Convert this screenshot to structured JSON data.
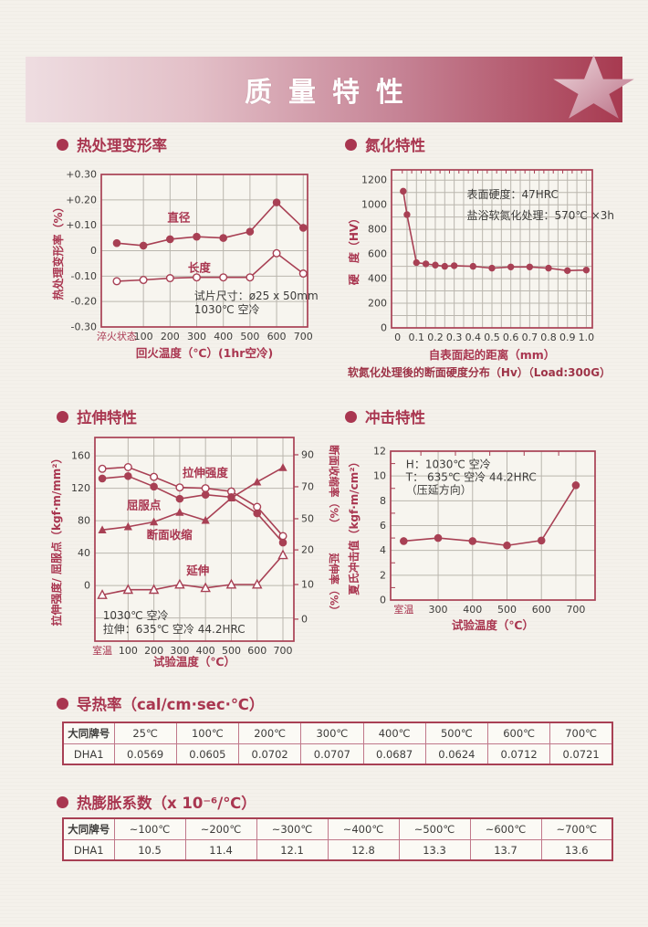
{
  "banner": {
    "title": "质量特性"
  },
  "colors": {
    "accent": "#a93650",
    "line": "#a84054",
    "grid": "#bab6ae",
    "dark_text": "#3d3c3a",
    "plot_bg": "#f7f5ef",
    "paper": "#f4f1eb",
    "banner_light": "#eedde1",
    "banner_dark": "#a73a50"
  },
  "chart_data": [
    {
      "id": "heat-deformation",
      "type": "line",
      "section_title": "热处理变形率",
      "xlabel": "回火温度（℃）(1hr空冷)",
      "ylabel": "热处理变形率（%）",
      "categories": [
        "淬火状态",
        "100",
        "200",
        "300",
        "400",
        "500",
        "600",
        "700"
      ],
      "first_category_accent": true,
      "axes": {
        "left": {
          "map": [
            [
              0.3,
              0
            ],
            [
              -0.3,
              1
            ]
          ],
          "ticks": [
            [
              0.3,
              "+0.30"
            ],
            [
              0.2,
              "+0.20"
            ],
            [
              0.1,
              "+0.10"
            ],
            [
              0,
              "0"
            ],
            [
              -0.1,
              "-0.10"
            ],
            [
              -0.2,
              "-0.20"
            ],
            [
              -0.3,
              "-0.30"
            ]
          ],
          "grid": [
            0.2,
            0.1,
            0,
            -0.1,
            -0.2
          ]
        }
      },
      "series": [
        {
          "name": "直径",
          "marker": "circle-filled",
          "axis": "left",
          "values": [
            0.03,
            0.02,
            0.045,
            0.055,
            0.05,
            0.075,
            0.19,
            0.09
          ]
        },
        {
          "name": "长度",
          "marker": "circle-open",
          "axis": "left",
          "values": [
            -0.12,
            -0.115,
            -0.108,
            -0.105,
            -0.105,
            -0.105,
            -0.01,
            -0.09
          ]
        }
      ],
      "labels": [
        {
          "text": "直径",
          "fx": 0.32,
          "fy": 0.285
        },
        {
          "text": "长度",
          "fx": 0.42,
          "fy": 0.615
        }
      ],
      "note": {
        "fx": 0.45,
        "fy": 0.795,
        "lines": [
          "试片尺寸：ø25 x 50mm",
          "1030℃ 空冷"
        ]
      }
    },
    {
      "id": "nitriding",
      "type": "line",
      "section_title": "氮化特性",
      "xlabel": "自表面起的距离（mm）",
      "ylabel": "硬　度（HV）",
      "caption": "软氮化处理後的断面硬度分布（Hv）（Load:300G）",
      "x_map": [
        [
          0,
          0.03
        ],
        [
          1.0,
          0.97
        ]
      ],
      "x_ticks": [
        [
          0,
          "0"
        ],
        [
          0.1,
          "0.1"
        ],
        [
          0.2,
          "0.2"
        ],
        [
          0.3,
          "0.3"
        ],
        [
          0.4,
          "0.4"
        ],
        [
          0.5,
          "0.5"
        ],
        [
          0.6,
          "0.6"
        ],
        [
          0.7,
          "0.7"
        ],
        [
          0.8,
          "0.8"
        ],
        [
          0.9,
          "0.9"
        ],
        [
          1.0,
          "1.0"
        ]
      ],
      "x_grid": [
        0.05,
        0.1,
        0.15,
        0.2,
        0.25,
        0.3,
        0.35,
        0.4,
        0.45,
        0.5,
        0.55,
        0.6,
        0.65,
        0.7,
        0.75,
        0.8,
        0.85,
        0.9,
        0.95,
        1.0
      ],
      "x_minor": [
        0.025,
        0.075,
        0.125,
        0.175,
        0.225,
        0.275,
        0.325,
        0.375,
        0.425,
        0.475,
        0.525,
        0.575,
        0.625,
        0.675,
        0.725,
        0.775,
        0.825,
        0.875,
        0.925,
        0.975
      ],
      "axes": {
        "left": {
          "map": [
            [
              1200,
              0.065
            ],
            [
              0,
              1.0
            ]
          ],
          "ticks": [
            [
              1200,
              "1200"
            ],
            [
              1000,
              "1000"
            ],
            [
              800,
              "800"
            ],
            [
              600,
              "600"
            ],
            [
              400,
              "400"
            ],
            [
              200,
              "200"
            ],
            [
              0,
              "0"
            ]
          ],
          "grid": [
            100,
            200,
            300,
            400,
            500,
            600,
            700,
            800,
            900,
            1000,
            1100,
            1200
          ]
        }
      },
      "series": [
        {
          "name": "硬度",
          "marker": "circle-filled",
          "axis": "left",
          "size": 3.2,
          "points": [
            [
              0.03,
              1110
            ],
            [
              0.05,
              920
            ],
            [
              0.1,
              530
            ],
            [
              0.15,
              520
            ],
            [
              0.2,
              510
            ],
            [
              0.25,
              500
            ],
            [
              0.3,
              505
            ],
            [
              0.4,
              500
            ],
            [
              0.5,
              485
            ],
            [
              0.6,
              495
            ],
            [
              0.7,
              495
            ],
            [
              0.8,
              485
            ],
            [
              0.9,
              465
            ],
            [
              1.0,
              470
            ]
          ]
        }
      ],
      "annotations": [
        {
          "fx": 0.375,
          "fy": 0.155,
          "text": "表面硬度：47HRC"
        },
        {
          "fx": 0.375,
          "fy": 0.29,
          "text": "盐浴软氮化处理：570℃ ×3h"
        }
      ]
    },
    {
      "id": "tensile",
      "type": "line",
      "section_title": "拉伸特性",
      "xlabel": "试验温度（℃）",
      "ylabel": "拉伸强度/ 屈服点（kgf·m/mm²）",
      "categories": [
        "室温",
        "100",
        "200",
        "300",
        "400",
        "500",
        "600",
        "700"
      ],
      "first_category_accent": true,
      "axes": {
        "left": {
          "map": [
            [
              160,
              0.09
            ],
            [
              0,
              0.727
            ]
          ],
          "ticks": [
            [
              160,
              "160"
            ],
            [
              120,
              "120"
            ],
            [
              80,
              "80"
            ],
            [
              40,
              "40"
            ],
            [
              0,
              "0"
            ]
          ],
          "grid": [
            160,
            120,
            80,
            40,
            0,
            -40
          ]
        },
        "right1": {
          "label": "断面收缩率（%）",
          "map": [
            [
              90,
              0.085
            ],
            [
              50,
              0.399
            ]
          ],
          "ticks": [
            [
              90,
              "90"
            ],
            [
              70,
              "70"
            ],
            [
              50,
              "50"
            ]
          ]
        },
        "right2": {
          "label": "延伸率（%）",
          "map": [
            [
              20,
              0.552
            ],
            [
              0,
              0.892
            ]
          ],
          "ticks": [
            [
              20,
              "20"
            ],
            [
              10,
              "10"
            ],
            [
              0,
              "0"
            ]
          ]
        }
      },
      "series": [
        {
          "name": "拉伸强度",
          "marker": "circle-open",
          "axis": "left",
          "values": [
            144,
            146,
            134,
            121,
            120,
            116,
            97,
            61
          ]
        },
        {
          "name": "屈服点",
          "marker": "circle-filled",
          "axis": "left",
          "values": [
            132,
            135,
            122,
            107,
            112,
            109,
            89,
            53
          ]
        },
        {
          "name": "断面收缩",
          "marker": "triangle-filled",
          "axis": "right1",
          "values": [
            43,
            45,
            48,
            54,
            49,
            63,
            73,
            82
          ]
        },
        {
          "name": "延伸",
          "marker": "triangle-open",
          "axis": "right2",
          "values": [
            7,
            8.5,
            8.5,
            10,
            9,
            10,
            10,
            18.5
          ]
        }
      ],
      "labels": [
        {
          "text": "拉伸强度",
          "fx": 0.44,
          "fy": 0.175
        },
        {
          "text": "屈服点",
          "fx": 0.16,
          "fy": 0.335
        },
        {
          "text": "断面收缩",
          "fx": 0.26,
          "fy": 0.48
        },
        {
          "text": "延伸",
          "fx": 0.46,
          "fy": 0.655
        }
      ],
      "note": {
        "fx": 0.04,
        "fy": 0.875,
        "lines": [
          "1030℃ 空冷",
          "拉伸：635℃ 空冷 44.2HRC"
        ]
      }
    },
    {
      "id": "impact",
      "type": "line",
      "section_title": "冲击特性",
      "xlabel": "试验温度（℃）",
      "ylabel": "夏氏冲击值（kgf·m/cm²）",
      "categories": [
        "室温",
        "300",
        "400",
        "500",
        "600",
        "700"
      ],
      "first_category_accent": true,
      "top_minor_fracs": [
        0.148,
        0.317,
        0.485,
        0.653,
        0.822
      ],
      "axes": {
        "left": {
          "map": [
            [
              12,
              0
            ],
            [
              0,
              1
            ]
          ],
          "ticks": [
            [
              12,
              "12"
            ],
            [
              10,
              "10"
            ],
            [
              8,
              "8"
            ],
            [
              6,
              "6"
            ],
            [
              4,
              "4"
            ],
            [
              2,
              "2"
            ],
            [
              0,
              "0"
            ]
          ],
          "grid": [
            2,
            4,
            6,
            8,
            10
          ],
          "minor": [
            1,
            3,
            5,
            7,
            9,
            11
          ]
        }
      },
      "series": [
        {
          "name": "冲击值",
          "marker": "circle-filled",
          "axis": "left",
          "values": [
            4.75,
            5.0,
            4.75,
            4.4,
            4.8,
            9.25
          ]
        }
      ],
      "annotations": [
        {
          "fx": 0.075,
          "fy": 0.09,
          "text": "H：1030℃ 空冷"
        },
        {
          "fx": 0.075,
          "fy": 0.175,
          "text": "T：  635℃ 空冷  44.2HRC"
        },
        {
          "fx": 0.075,
          "fy": 0.26,
          "text": "（压延方向）"
        }
      ]
    }
  ],
  "tables": [
    {
      "id": "thermal-conductivity",
      "title": "导热率（cal/cm·sec·℃）",
      "headers": [
        "大同牌号",
        "25℃",
        "100℃",
        "200℃",
        "300℃",
        "400℃",
        "500℃",
        "600℃",
        "700℃"
      ],
      "rows": [
        [
          "DHA1",
          "0.0569",
          "0.0605",
          "0.0702",
          "0.0707",
          "0.0687",
          "0.0624",
          "0.0712",
          "0.0721"
        ]
      ]
    },
    {
      "id": "thermal-expansion",
      "title": "热膨胀系数（x 10⁻⁶/℃）",
      "headers": [
        "大同牌号",
        "~100℃",
        "~200℃",
        "~300℃",
        "~400℃",
        "~500℃",
        "~600℃",
        "~700℃"
      ],
      "rows": [
        [
          "DHA1",
          "10.5",
          "11.4",
          "12.1",
          "12.8",
          "13.3",
          "13.7",
          "13.6"
        ]
      ]
    }
  ]
}
